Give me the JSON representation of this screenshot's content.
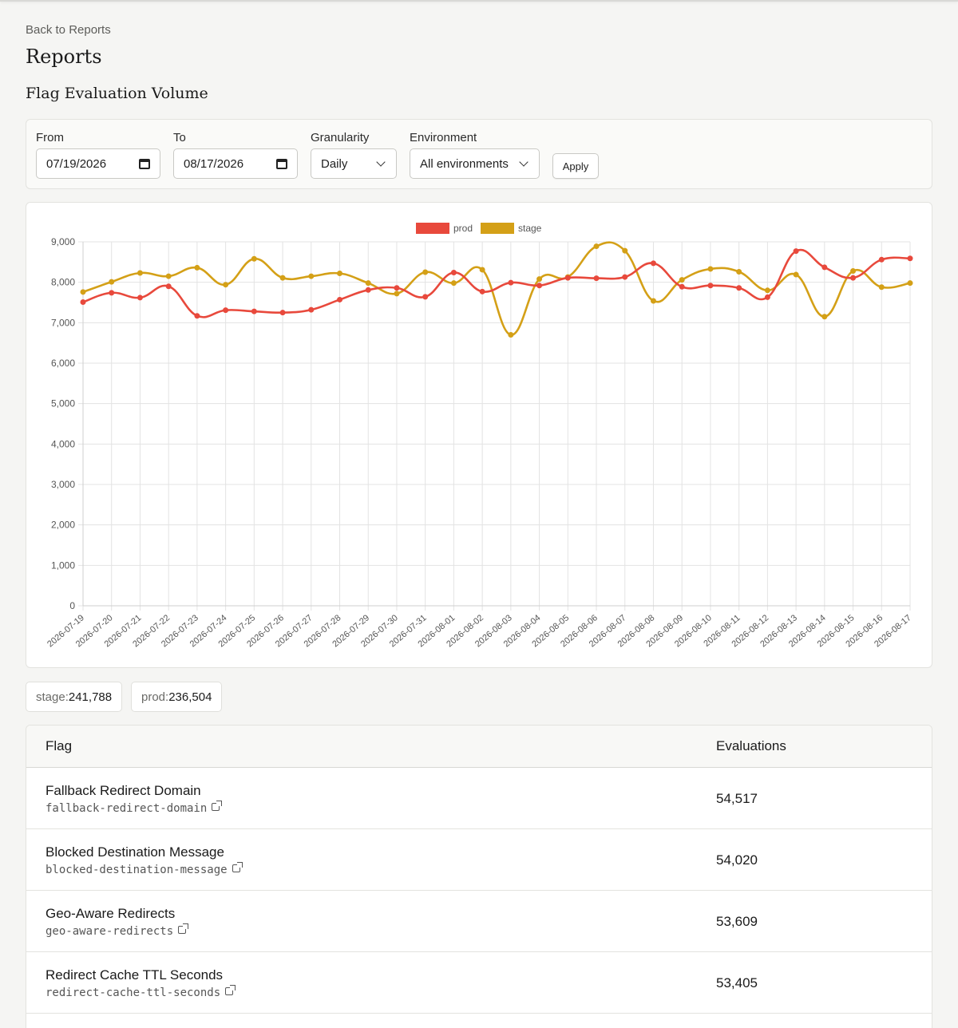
{
  "nav": {
    "back_label": "Back to Reports"
  },
  "page": {
    "title": "Reports",
    "section_title": "Flag Evaluation Volume"
  },
  "filters": {
    "from_label": "From",
    "from_value": "07/19/2026",
    "to_label": "To",
    "to_value": "08/17/2026",
    "granularity_label": "Granularity",
    "granularity_value": "Daily",
    "environment_label": "Environment",
    "environment_value": "All environments",
    "apply_label": "Apply"
  },
  "chart_data": {
    "type": "line",
    "legend_position": "top-center",
    "grid": true,
    "ylim": [
      0,
      9000
    ],
    "yticks": [
      "0",
      "1,000",
      "2,000",
      "3,000",
      "4,000",
      "5,000",
      "6,000",
      "7,000",
      "8,000",
      "9,000"
    ],
    "x": [
      "2026-07-19",
      "2026-07-20",
      "2026-07-21",
      "2026-07-22",
      "2026-07-23",
      "2026-07-24",
      "2026-07-25",
      "2026-07-26",
      "2026-07-27",
      "2026-07-28",
      "2026-07-29",
      "2026-07-30",
      "2026-07-31",
      "2026-08-01",
      "2026-08-02",
      "2026-08-03",
      "2026-08-04",
      "2026-08-05",
      "2026-08-06",
      "2026-08-07",
      "2026-08-08",
      "2026-08-09",
      "2026-08-10",
      "2026-08-11",
      "2026-08-12",
      "2026-08-13",
      "2026-08-14",
      "2026-08-15",
      "2026-08-16",
      "2026-08-17"
    ],
    "series": [
      {
        "name": "prod",
        "color": "#e8493c",
        "values": [
          7510,
          7740,
          7620,
          7900,
          7170,
          7310,
          7280,
          7250,
          7320,
          7570,
          7810,
          7860,
          7640,
          8240,
          7770,
          7990,
          7920,
          8110,
          8100,
          8130,
          8470,
          7890,
          7920,
          7860,
          7630,
          8770,
          8370,
          8110,
          8560,
          8590
        ]
      },
      {
        "name": "stage",
        "color": "#d4a017",
        "values": [
          7760,
          8010,
          8230,
          8150,
          8360,
          7940,
          8580,
          8110,
          8150,
          8220,
          7980,
          7720,
          8250,
          7980,
          8310,
          6700,
          8080,
          8130,
          8890,
          8780,
          7540,
          8060,
          8330,
          8260,
          7800,
          8190,
          7150,
          8280,
          7880,
          7980
        ]
      }
    ]
  },
  "totals": [
    {
      "label": "stage",
      "value": "241,788"
    },
    {
      "label": "prod",
      "value": "236,504"
    }
  ],
  "table": {
    "headers": {
      "flag": "Flag",
      "evaluations": "Evaluations"
    },
    "rows": [
      {
        "name": "Fallback Redirect Domain",
        "key": "fallback-redirect-domain",
        "value": "54,517"
      },
      {
        "name": "Blocked Destination Message",
        "key": "blocked-destination-message",
        "value": "54,020"
      },
      {
        "name": "Geo-Aware Redirects",
        "key": "geo-aware-redirects",
        "value": "53,609"
      },
      {
        "name": "Redirect Cache TTL Seconds",
        "key": "redirect-cache-ttl-seconds",
        "value": "53,405"
      }
    ]
  }
}
